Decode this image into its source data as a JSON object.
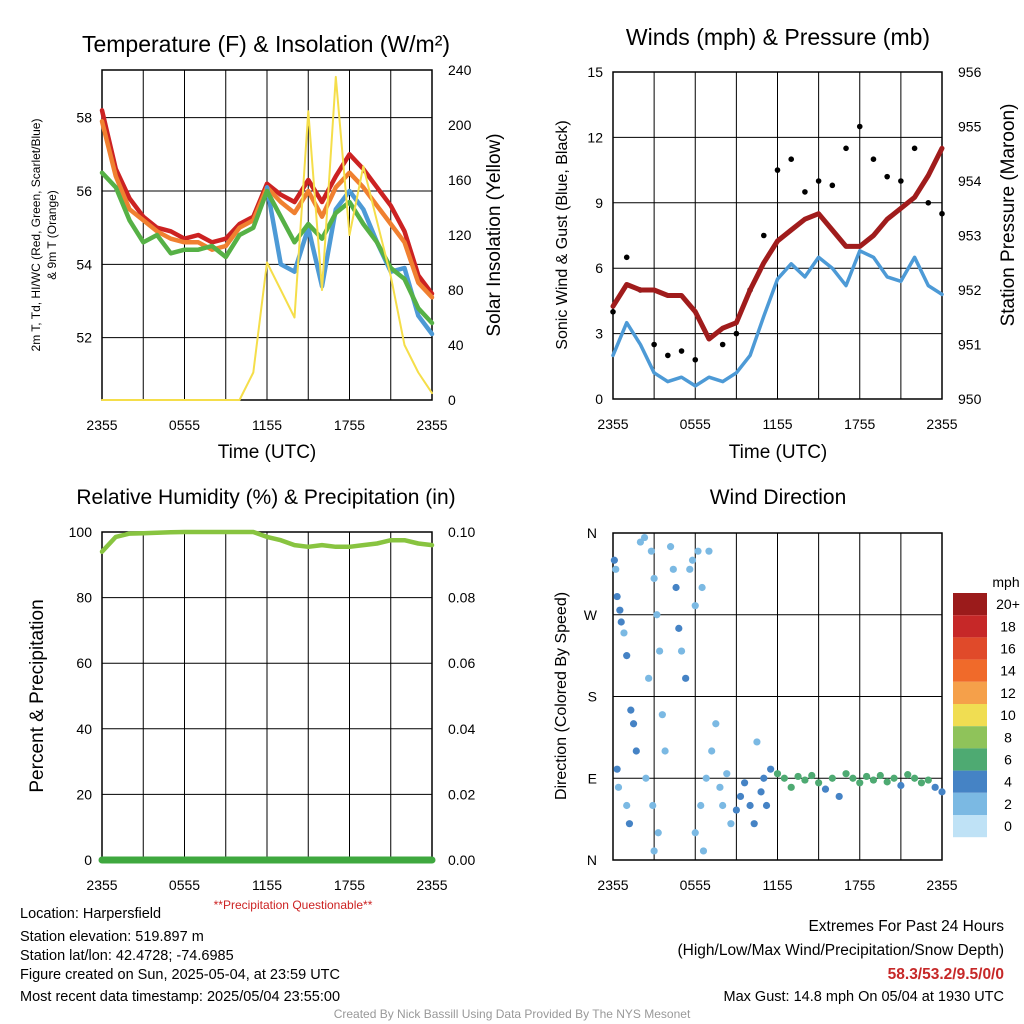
{
  "chart_data": [
    {
      "type": "line",
      "title": "Temperature (F) & Insolation (W/m²)",
      "xlabel": "Time (UTC)",
      "ylabel": "2m T, Td, HI/WC (Red, Green, Scarlet/Blue) & 9m T (Orange)",
      "ylabel_line1": "2m T, Td, HI/WC (Red, Green, Scarlet/Blue)",
      "ylabel_line2": "& 9m T (Orange)",
      "ylabel_right": "Solar Insolation (Yellow)",
      "x_ticks": [
        "2355",
        "0555",
        "1155",
        "1755",
        "2355"
      ],
      "ylim": [
        50.3,
        59.3
      ],
      "y_ticks": [
        52,
        54,
        56,
        58
      ],
      "ylim_right": [
        0,
        240
      ],
      "y_ticks_right": [
        0,
        40,
        80,
        120,
        160,
        200,
        240
      ],
      "x": [
        0,
        1,
        2,
        3,
        4,
        5,
        6,
        7,
        8,
        9,
        10,
        11,
        12,
        13,
        14,
        15,
        16,
        17,
        18,
        19,
        20,
        21,
        22,
        23,
        24
      ],
      "series": [
        {
          "color": "#cc2222",
          "axis": "left",
          "values": [
            58.2,
            56.6,
            55.8,
            55.3,
            55.0,
            54.9,
            54.7,
            54.8,
            54.6,
            54.7,
            55.1,
            55.3,
            56.2,
            55.9,
            55.7,
            56.3,
            55.7,
            56.4,
            57.0,
            56.6,
            56.1,
            55.6,
            54.9,
            53.7,
            53.2
          ]
        },
        {
          "color": "#f08030",
          "axis": "left",
          "values": [
            57.9,
            56.4,
            55.5,
            55.2,
            54.9,
            54.7,
            54.6,
            54.6,
            54.4,
            54.5,
            55.0,
            55.2,
            56.1,
            55.7,
            55.4,
            56.0,
            55.3,
            56.1,
            56.5,
            56.1,
            55.6,
            55.1,
            54.6,
            53.5,
            53.1
          ]
        },
        {
          "color": "#4d9ad6",
          "axis": "left",
          "values": [
            null,
            null,
            null,
            null,
            null,
            null,
            null,
            null,
            null,
            null,
            null,
            null,
            56.1,
            54.0,
            53.8,
            55.0,
            53.4,
            55.5,
            56.0,
            55.5,
            54.6,
            53.8,
            53.9,
            52.6,
            52.1
          ]
        },
        {
          "color": "#56b146",
          "axis": "left",
          "values": [
            56.5,
            56.1,
            55.2,
            54.6,
            54.8,
            54.3,
            54.4,
            54.4,
            54.5,
            54.2,
            54.8,
            55.0,
            56.0,
            55.3,
            54.6,
            55.1,
            54.7,
            55.4,
            55.7,
            55.1,
            54.6,
            53.9,
            53.6,
            52.8,
            52.4
          ]
        },
        {
          "color": "#f5de4a",
          "axis": "right",
          "values": [
            0,
            0,
            0,
            0,
            0,
            0,
            0,
            0,
            0,
            0,
            0,
            20,
            100,
            80,
            60,
            210,
            80,
            235,
            120,
            170,
            130,
            90,
            40,
            20,
            5
          ]
        }
      ]
    },
    {
      "type": "line",
      "title": "Winds (mph) & Pressure (mb)",
      "xlabel": "Time (UTC)",
      "ylabel": "Sonic Wind & Gust (Blue, Black)",
      "ylabel_right": "Station Pressure (Maroon)",
      "x_ticks": [
        "2355",
        "0555",
        "1155",
        "1755",
        "2355"
      ],
      "ylim": [
        0,
        15
      ],
      "y_ticks": [
        0,
        3,
        6,
        9,
        12,
        15
      ],
      "ylim_right": [
        950,
        956
      ],
      "y_ticks_right": [
        950,
        951,
        952,
        953,
        954,
        955,
        956
      ],
      "x": [
        0,
        1,
        2,
        3,
        4,
        5,
        6,
        7,
        8,
        9,
        10,
        11,
        12,
        13,
        14,
        15,
        16,
        17,
        18,
        19,
        20,
        21,
        22,
        23,
        24
      ],
      "series": [
        {
          "color": "#4d9ad6",
          "axis": "left",
          "name_color": "Blue",
          "values": [
            2.0,
            3.5,
            2.5,
            1.2,
            0.8,
            1.0,
            0.6,
            1.0,
            0.8,
            1.2,
            2.0,
            3.8,
            5.5,
            6.2,
            5.6,
            6.5,
            6.0,
            5.2,
            6.8,
            6.5,
            5.6,
            5.4,
            6.5,
            5.2,
            4.8
          ]
        },
        {
          "color": "#000000",
          "axis": "left",
          "name_color": "Black",
          "style": "points",
          "values": [
            4.0,
            6.5,
            5.0,
            2.5,
            2.0,
            2.2,
            1.8,
            2.8,
            2.5,
            3.0,
            5.0,
            7.5,
            10.5,
            11.0,
            9.5,
            10.0,
            9.8,
            11.5,
            12.5,
            11.0,
            10.2,
            10.0,
            11.5,
            9.0,
            8.5
          ]
        },
        {
          "color": "#a01c1c",
          "axis": "right",
          "name_color": "Maroon",
          "values": [
            951.7,
            952.1,
            952.0,
            952.0,
            951.9,
            951.9,
            951.6,
            951.1,
            951.3,
            951.4,
            952.0,
            952.5,
            952.9,
            953.1,
            953.3,
            953.4,
            953.1,
            952.8,
            952.8,
            953.0,
            953.3,
            953.5,
            953.7,
            954.1,
            954.6
          ]
        }
      ]
    },
    {
      "type": "line",
      "title": "Relative Humidity (%) & Precipitation (in)",
      "ylabel": "Percent & Precipitation",
      "x_ticks": [
        "2355",
        "0555",
        "1155",
        "1755",
        "2355"
      ],
      "ylim": [
        0,
        100
      ],
      "y_ticks": [
        0,
        20,
        40,
        60,
        80,
        100
      ],
      "ylim_right": [
        0,
        0.1
      ],
      "y_ticks_right": [
        "0.00",
        "0.02",
        "0.04",
        "0.06",
        "0.08",
        "0.10"
      ],
      "x": [
        0,
        1,
        2,
        3,
        4,
        5,
        6,
        7,
        8,
        9,
        10,
        11,
        12,
        13,
        14,
        15,
        16,
        17,
        18,
        19,
        20,
        21,
        22,
        23,
        24
      ],
      "series": [
        {
          "color": "#88c440",
          "axis": "left",
          "values": [
            94,
            98.5,
            99.5,
            99.6,
            99.8,
            99.9,
            100,
            100,
            100,
            100,
            100,
            100,
            98.5,
            97.5,
            96,
            95.5,
            96,
            95.5,
            95.5,
            96,
            96.5,
            97.5,
            97.5,
            96.5,
            96
          ]
        },
        {
          "color": "#3fa83f",
          "axis": "right",
          "values": [
            0,
            0,
            0,
            0,
            0,
            0,
            0,
            0,
            0,
            0,
            0,
            0,
            0,
            0,
            0,
            0,
            0,
            0,
            0,
            0,
            0,
            0,
            0,
            0,
            0
          ]
        }
      ],
      "note": "**Precipitation Questionable**"
    },
    {
      "type": "scatter",
      "title": "Wind Direction",
      "ylabel": "Direction (Colored By Speed)",
      "x_ticks": [
        "2355",
        "0555",
        "1155",
        "1755",
        "2355"
      ],
      "y_ticks": [
        "N",
        "E",
        "S",
        "W",
        "N"
      ],
      "ylim": [
        0,
        360
      ],
      "points": [
        [
          0.1,
          330,
          4
        ],
        [
          0.2,
          320,
          2
        ],
        [
          0.3,
          290,
          4
        ],
        [
          0.5,
          275,
          4
        ],
        [
          0.6,
          262,
          4
        ],
        [
          0.8,
          250,
          2
        ],
        [
          1.0,
          225,
          4
        ],
        [
          1.3,
          165,
          4
        ],
        [
          1.5,
          150,
          4
        ],
        [
          1.7,
          120,
          4
        ],
        [
          0.4,
          80,
          2
        ],
        [
          1.0,
          60,
          2
        ],
        [
          1.2,
          40,
          4
        ],
        [
          0.3,
          100,
          4
        ],
        [
          2.0,
          350,
          2
        ],
        [
          2.3,
          355,
          2
        ],
        [
          2.8,
          340,
          2
        ],
        [
          3.0,
          310,
          2
        ],
        [
          3.2,
          270,
          2
        ],
        [
          3.4,
          230,
          2
        ],
        [
          2.6,
          200,
          2
        ],
        [
          3.6,
          160,
          2
        ],
        [
          3.8,
          120,
          2
        ],
        [
          2.4,
          90,
          2
        ],
        [
          2.9,
          60,
          2
        ],
        [
          3.3,
          30,
          2
        ],
        [
          3.0,
          10,
          2
        ],
        [
          4.2,
          345,
          2
        ],
        [
          4.4,
          320,
          2
        ],
        [
          4.6,
          300,
          4
        ],
        [
          4.8,
          255,
          4
        ],
        [
          5.0,
          230,
          2
        ],
        [
          5.3,
          200,
          4
        ],
        [
          5.6,
          320,
          2
        ],
        [
          5.8,
          330,
          2
        ],
        [
          6.2,
          340,
          2
        ],
        [
          6.0,
          280,
          2
        ],
        [
          6.5,
          300,
          2
        ],
        [
          7.0,
          340,
          2
        ],
        [
          7.5,
          150,
          2
        ],
        [
          7.2,
          120,
          2
        ],
        [
          6.8,
          90,
          2
        ],
        [
          6.4,
          60,
          2
        ],
        [
          6.0,
          30,
          2
        ],
        [
          6.6,
          10,
          2
        ],
        [
          7.8,
          80,
          2
        ],
        [
          8.0,
          60,
          2
        ],
        [
          8.3,
          95,
          2
        ],
        [
          8.6,
          40,
          2
        ],
        [
          9.0,
          55,
          4
        ],
        [
          9.3,
          70,
          4
        ],
        [
          9.6,
          85,
          4
        ],
        [
          10.0,
          60,
          4
        ],
        [
          10.3,
          40,
          4
        ],
        [
          10.5,
          130,
          2
        ],
        [
          10.8,
          75,
          4
        ],
        [
          11.0,
          90,
          4
        ],
        [
          11.2,
          60,
          4
        ],
        [
          11.5,
          100,
          4
        ],
        [
          12.0,
          95,
          6
        ],
        [
          12.5,
          90,
          6
        ],
        [
          13.0,
          80,
          6
        ],
        [
          13.5,
          92,
          6
        ],
        [
          14.0,
          88,
          6
        ],
        [
          14.5,
          93,
          6
        ],
        [
          15.0,
          85,
          6
        ],
        [
          15.5,
          78,
          4
        ],
        [
          16.0,
          90,
          6
        ],
        [
          16.5,
          70,
          4
        ],
        [
          17.0,
          95,
          6
        ],
        [
          17.5,
          90,
          6
        ],
        [
          18.0,
          85,
          6
        ],
        [
          18.5,
          92,
          6
        ],
        [
          19.0,
          88,
          6
        ],
        [
          19.5,
          93,
          6
        ],
        [
          20.0,
          86,
          6
        ],
        [
          20.5,
          90,
          6
        ],
        [
          21.0,
          82,
          4
        ],
        [
          21.5,
          94,
          6
        ],
        [
          22.0,
          90,
          6
        ],
        [
          22.5,
          85,
          6
        ],
        [
          23.0,
          88,
          6
        ],
        [
          23.5,
          80,
          4
        ],
        [
          24.0,
          75,
          4
        ]
      ],
      "colorbar": {
        "title": "mph",
        "labels": [
          "20+",
          "18",
          "16",
          "14",
          "12",
          "10",
          "8",
          "6",
          "4",
          "2",
          "0"
        ],
        "colors": [
          "#9b1b1b",
          "#c62828",
          "#e04a2a",
          "#f06a2a",
          "#f5a04a",
          "#f0dd52",
          "#8fc35a",
          "#4eaa72",
          "#4583c5",
          "#7bb9e3",
          "#bfe2f6"
        ]
      }
    }
  ],
  "footer": {
    "location": "Location: Harpersfield",
    "elevation": "Station elevation: 519.897 m",
    "latlon": "Station lat/lon: 42.4728; -74.6985",
    "created": "Figure created on Sun, 2025-05-04, at 23:59 UTC",
    "recent": "Most recent data timestamp: 2025/05/04 23:55:00",
    "extremes_title": "Extremes For Past 24 Hours",
    "extremes_sub": "(High/Low/Max Wind/Precipitation/Snow Depth)",
    "extremes_values": "58.3/53.2/9.5/0/0",
    "max_gust": "Max Gust: 14.8 mph On 05/04 at 1930 UTC",
    "credit": "Created By Nick Bassill Using Data Provided By The NYS Mesonet"
  },
  "colors": {
    "extremes": "#c62828",
    "note": "#cc2222",
    "credit": "#999999"
  }
}
